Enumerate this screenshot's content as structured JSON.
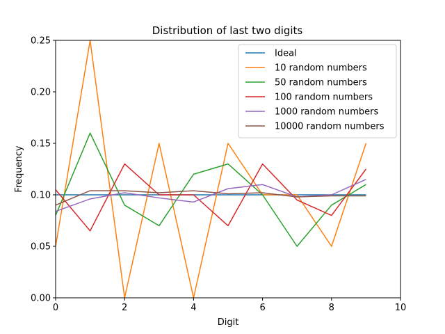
{
  "chart_data": {
    "type": "line",
    "title": "Distribution of last two digits",
    "xlabel": "Digit",
    "ylabel": "Frequency",
    "xlim": [
      0,
      10
    ],
    "ylim": [
      0,
      0.25
    ],
    "xticks": [
      0,
      2,
      4,
      6,
      8,
      10
    ],
    "xtick_labels": [
      "0",
      "2",
      "4",
      "6",
      "8",
      "10"
    ],
    "yticks": [
      0,
      0.05,
      0.1,
      0.15,
      0.2,
      0.25
    ],
    "ytick_labels": [
      "0.00",
      "0.05",
      "0.10",
      "0.15",
      "0.20",
      "0.25"
    ],
    "grid": false,
    "legend_position": "top-right",
    "x": [
      0,
      1,
      2,
      3,
      4,
      5,
      6,
      7,
      8,
      9
    ],
    "series": [
      {
        "name": "Ideal",
        "color": "#1f77b4",
        "values": [
          0.1,
          0.1,
          0.1,
          0.1,
          0.1,
          0.1,
          0.1,
          0.1,
          0.1,
          0.1
        ]
      },
      {
        "name": "10 random numbers",
        "color": "#ff7f0e",
        "values": [
          0.05,
          0.25,
          0.0,
          0.15,
          0.0,
          0.15,
          0.1,
          0.1,
          0.05,
          0.15
        ]
      },
      {
        "name": "50 random numbers",
        "color": "#2ca02c",
        "values": [
          0.08,
          0.16,
          0.09,
          0.07,
          0.12,
          0.13,
          0.1,
          0.05,
          0.09,
          0.11
        ]
      },
      {
        "name": "100 random numbers",
        "color": "#d62728",
        "values": [
          0.105,
          0.065,
          0.13,
          0.1,
          0.1,
          0.07,
          0.13,
          0.095,
          0.08,
          0.125
        ]
      },
      {
        "name": "1000 random numbers",
        "color": "#9467bd",
        "values": [
          0.084,
          0.096,
          0.102,
          0.097,
          0.093,
          0.106,
          0.11,
          0.098,
          0.1,
          0.115
        ]
      },
      {
        "name": "10000 random numbers",
        "color": "#8c564b",
        "values": [
          0.09,
          0.104,
          0.104,
          0.102,
          0.104,
          0.101,
          0.102,
          0.098,
          0.099,
          0.099
        ]
      }
    ]
  }
}
